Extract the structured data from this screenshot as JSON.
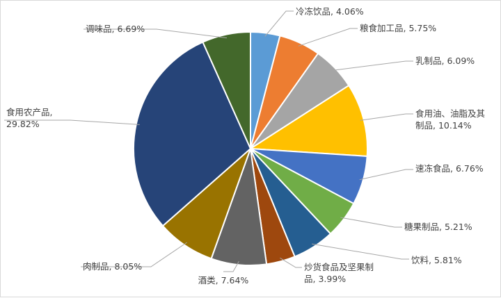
{
  "chart_data": {
    "type": "pie",
    "start_angle_deg": 0,
    "direction": "clockwise",
    "slices": [
      {
        "label": "冷冻饮品",
        "value": 4.06,
        "text": "冷冻饮品, 4.06%",
        "color": "#5b9bd5"
      },
      {
        "label": "粮食加工品",
        "value": 5.75,
        "text": "粮食加工品, 5.75%",
        "color": "#ed7d31"
      },
      {
        "label": "乳制品",
        "value": 6.09,
        "text": "乳制品, 6.09%",
        "color": "#a5a5a5"
      },
      {
        "label": "食用油、油脂及其制品",
        "value": 10.14,
        "lines": [
          "食用油、油脂及其",
          "制品, 10.14%"
        ],
        "color": "#ffc000"
      },
      {
        "label": "速冻食品",
        "value": 6.76,
        "text": "速冻食品, 6.76%",
        "color": "#4472c4"
      },
      {
        "label": "糖果制品",
        "value": 5.21,
        "text": "糖果制品, 5.21%",
        "color": "#70ad47"
      },
      {
        "label": "饮料",
        "value": 5.81,
        "text": "饮料, 5.81%",
        "color": "#255e91"
      },
      {
        "label": "炒货食品及坚果制品",
        "value": 3.99,
        "lines": [
          "炒货食品及坚果制",
          "品, 3.99%"
        ],
        "color": "#9e480e"
      },
      {
        "label": "酒类",
        "value": 7.64,
        "text": "酒类, 7.64%",
        "color": "#636363"
      },
      {
        "label": "肉制品",
        "value": 8.05,
        "text": "肉制品, 8.05%",
        "color": "#997300"
      },
      {
        "label": "食用农产品",
        "value": 29.82,
        "lines": [
          "食用农产品,",
          "29.82%"
        ],
        "color": "#264478"
      },
      {
        "label": "调味品",
        "value": 6.69,
        "text": "调味品, 6.69%",
        "color": "#43682b"
      }
    ]
  }
}
